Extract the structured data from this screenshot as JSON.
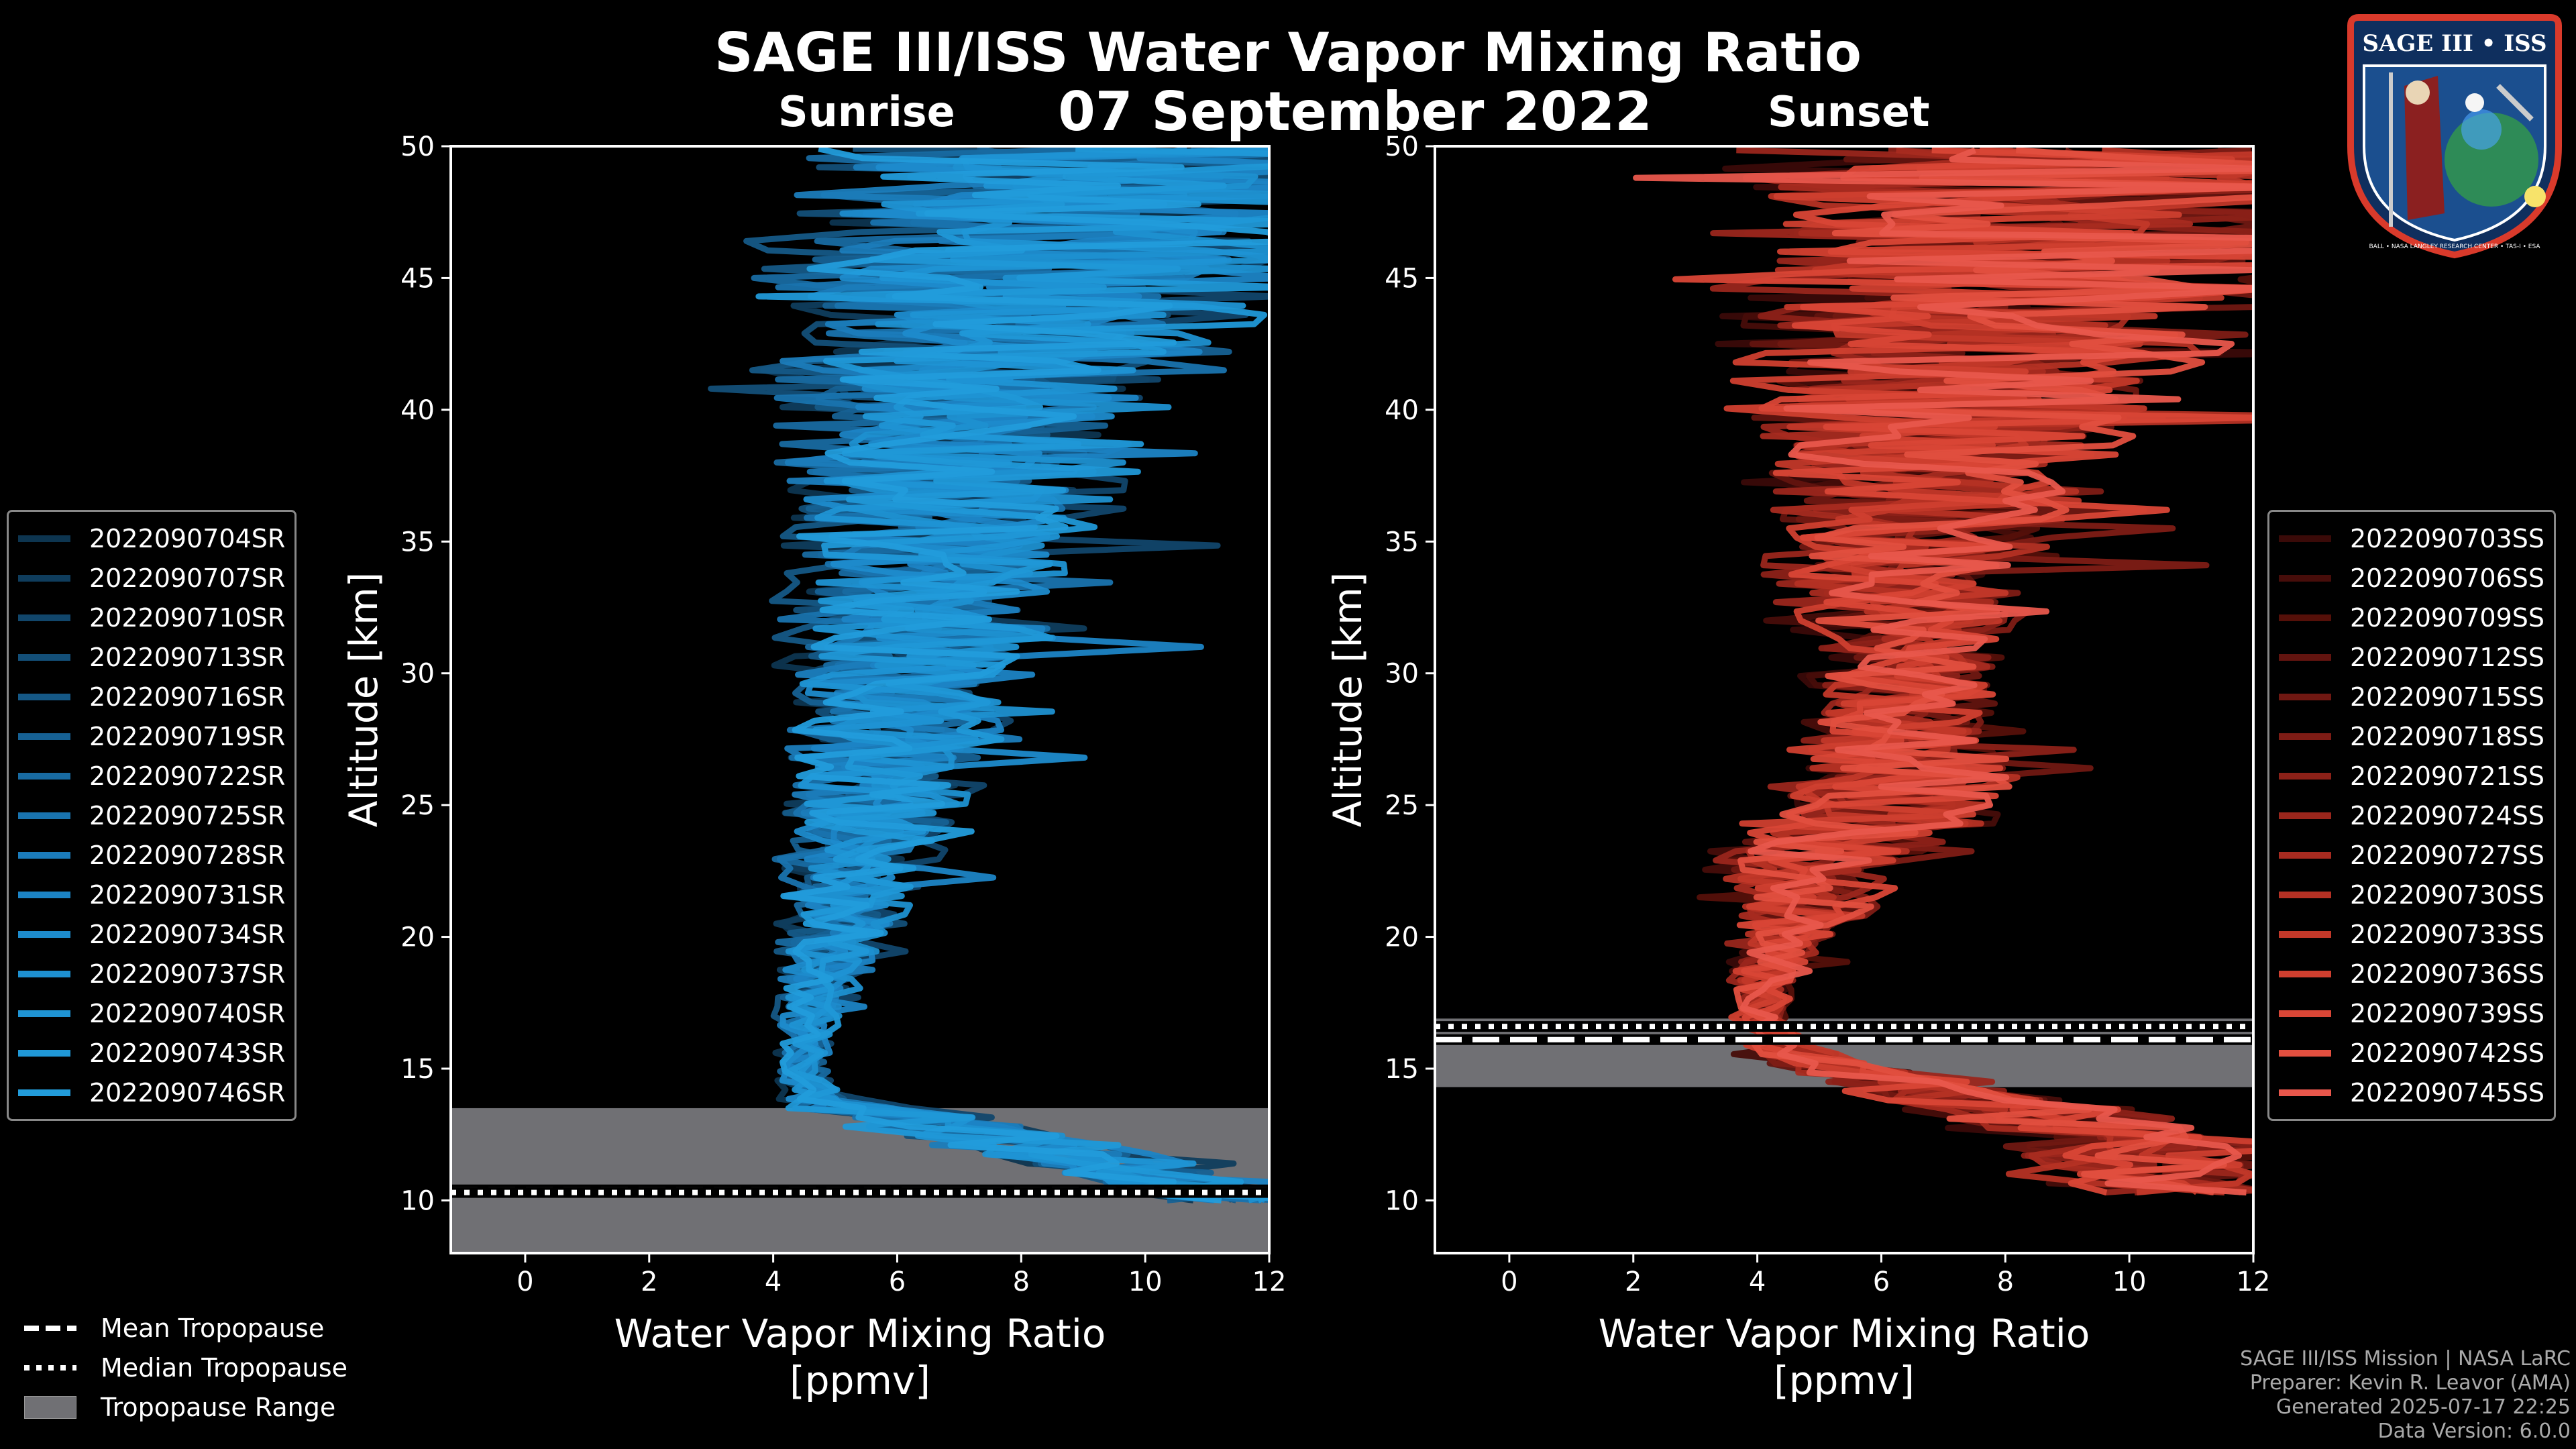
{
  "title": "SAGE III/ISS Water Vapor Mixing Ratio",
  "date": "07 September 2022",
  "logo": {
    "top_text": "SAGE III • ISS",
    "ring_text": "BALL • NASA LANGLEY RESEARCH CENTER • TAS-I • ESA"
  },
  "colors": {
    "sunrise": "#1a8fd1",
    "sunset": "#e8574c",
    "tropopause_fill": "#707074",
    "background": "#000000"
  },
  "chart_data": [
    {
      "type": "line",
      "panel": "sunrise",
      "subtitle": "Sunrise",
      "xlabel": "Water Vapor Mixing Ratio\n[ppmv]",
      "ylabel": "Altitude [km]",
      "xlim": [
        -1.2,
        12
      ],
      "ylim": [
        8,
        50
      ],
      "xticks": [
        0,
        2,
        4,
        6,
        8,
        10,
        12
      ],
      "yticks": [
        10,
        15,
        20,
        25,
        30,
        35,
        40,
        45,
        50
      ],
      "legend_position": "left",
      "series_names": [
        "2022090704SR",
        "2022090707SR",
        "2022090710SR",
        "2022090713SR",
        "2022090716SR",
        "2022090719SR",
        "2022090722SR",
        "2022090725SR",
        "2022090728SR",
        "2022090731SR",
        "2022090734SR",
        "2022090737SR",
        "2022090740SR",
        "2022090743SR",
        "2022090746SR"
      ],
      "series_colors": [
        "#0d3550",
        "#0f3d5d",
        "#11466b",
        "#134f78",
        "#155886",
        "#166194",
        "#186aa1",
        "#1973ae",
        "#1b7cbb",
        "#1c84c5",
        "#1d8bcc",
        "#1e90d0",
        "#1f94d4",
        "#2098d7",
        "#229cdb"
      ],
      "profile_altitude_km": [
        10,
        11,
        12,
        13,
        13.5,
        14,
        15,
        16,
        17,
        18,
        19,
        20,
        21,
        22,
        23,
        24,
        25,
        26,
        27,
        28,
        29,
        30,
        31,
        32,
        33,
        34,
        35,
        36,
        37,
        38,
        39,
        40,
        41,
        42,
        43,
        44,
        45,
        46,
        47,
        48,
        49,
        50
      ],
      "mean_profile_ppmv": [
        11.5,
        10,
        8,
        6.5,
        5,
        4.6,
        4.4,
        4.5,
        4.6,
        4.7,
        4.8,
        5.0,
        5.1,
        5.2,
        5.3,
        5.5,
        5.6,
        5.7,
        5.8,
        5.9,
        6.0,
        6.1,
        6.2,
        6.3,
        6.4,
        6.5,
        6.6,
        6.7,
        6.8,
        6.9,
        7.0,
        7.1,
        7.2,
        7.4,
        7.6,
        7.9,
        8.2,
        8.5,
        8.8,
        9.0,
        9.2,
        9.5
      ],
      "spread_ppmv": [
        1.2,
        1.5,
        1.5,
        1.4,
        1.0,
        0.4,
        0.4,
        0.4,
        0.5,
        0.6,
        0.7,
        0.8,
        0.9,
        1.0,
        1.1,
        1.2,
        1.3,
        1.4,
        1.5,
        1.6,
        1.7,
        1.8,
        1.9,
        2.0,
        2.1,
        2.2,
        2.3,
        2.4,
        2.5,
        2.6,
        2.7,
        2.8,
        3.0,
        3.2,
        3.4,
        3.6,
        3.8,
        4.0,
        4.2,
        4.4,
        4.6,
        4.8
      ],
      "tropopause": {
        "mean_km": 10.4,
        "median_km": 10.3,
        "range_km": [
          8,
          13.5
        ]
      }
    },
    {
      "type": "line",
      "panel": "sunset",
      "subtitle": "Sunset",
      "xlabel": "Water Vapor Mixing Ratio\n[ppmv]",
      "ylabel": "Altitude [km]",
      "xlim": [
        -1.2,
        12
      ],
      "ylim": [
        8,
        50
      ],
      "xticks": [
        0,
        2,
        4,
        6,
        8,
        10,
        12
      ],
      "yticks": [
        10,
        15,
        20,
        25,
        30,
        35,
        40,
        45,
        50
      ],
      "legend_position": "right",
      "series_names": [
        "2022090703SS",
        "2022090706SS",
        "2022090709SS",
        "2022090712SS",
        "2022090715SS",
        "2022090718SS",
        "2022090721SS",
        "2022090724SS",
        "2022090727SS",
        "2022090730SS",
        "2022090733SS",
        "2022090736SS",
        "2022090739SS",
        "2022090742SS",
        "2022090745SS"
      ],
      "series_colors": [
        "#3a0a08",
        "#470d0a",
        "#551009",
        "#62140f",
        "#701812",
        "#7e1c15",
        "#8c2118",
        "#9a261c",
        "#a82b20",
        "#b53124",
        "#c23829",
        "#cf3f2f",
        "#d94636",
        "#e24f3f",
        "#e8574c"
      ],
      "profile_altitude_km": [
        10.3,
        11,
        12,
        13,
        14,
        15,
        16,
        17,
        18,
        19,
        20,
        21,
        22,
        23,
        24,
        25,
        26,
        27,
        28,
        29,
        30,
        31,
        32,
        33,
        34,
        35,
        36,
        37,
        38,
        39,
        40,
        41,
        42,
        43,
        44,
        45,
        46,
        47,
        48,
        49,
        50
      ],
      "mean_profile_ppmv": [
        11,
        10.5,
        10,
        9,
        7,
        5.2,
        4.3,
        4.0,
        4.1,
        4.2,
        4.4,
        4.6,
        4.8,
        5.2,
        5.6,
        6.0,
        6.2,
        6.3,
        6.4,
        6.4,
        6.4,
        6.4,
        6.3,
        6.3,
        6.4,
        6.5,
        6.6,
        6.7,
        6.8,
        6.9,
        7.0,
        7.2,
        7.4,
        7.6,
        7.8,
        8.0,
        8.2,
        8.4,
        8.6,
        8.8,
        9.0
      ],
      "spread_ppmv": [
        2.0,
        2.0,
        2.0,
        2.0,
        1.6,
        1.0,
        0.5,
        0.4,
        0.5,
        0.6,
        0.8,
        1.1,
        1.6,
        1.9,
        1.9,
        1.8,
        1.8,
        1.7,
        1.6,
        1.5,
        1.5,
        1.6,
        1.7,
        1.8,
        2.0,
        2.2,
        2.4,
        2.6,
        2.8,
        3.0,
        3.2,
        3.4,
        3.6,
        3.8,
        4.0,
        4.2,
        4.4,
        4.6,
        4.8,
        5.0,
        5.2
      ],
      "tropopause": {
        "mean_km": 16.1,
        "median_km": 16.6,
        "range_km": [
          14.3,
          16.9
        ]
      }
    }
  ],
  "legend_trop": {
    "mean": "Mean Tropopause",
    "median": "Median Tropopause",
    "range": "Tropopause Range"
  },
  "footer": {
    "line1": "SAGE III/ISS Mission | NASA LaRC",
    "line2": "Preparer: Kevin R. Leavor (AMA)",
    "line3": "Generated 2025-07-17 22:25",
    "line4": "Data Version: 6.0.0"
  }
}
